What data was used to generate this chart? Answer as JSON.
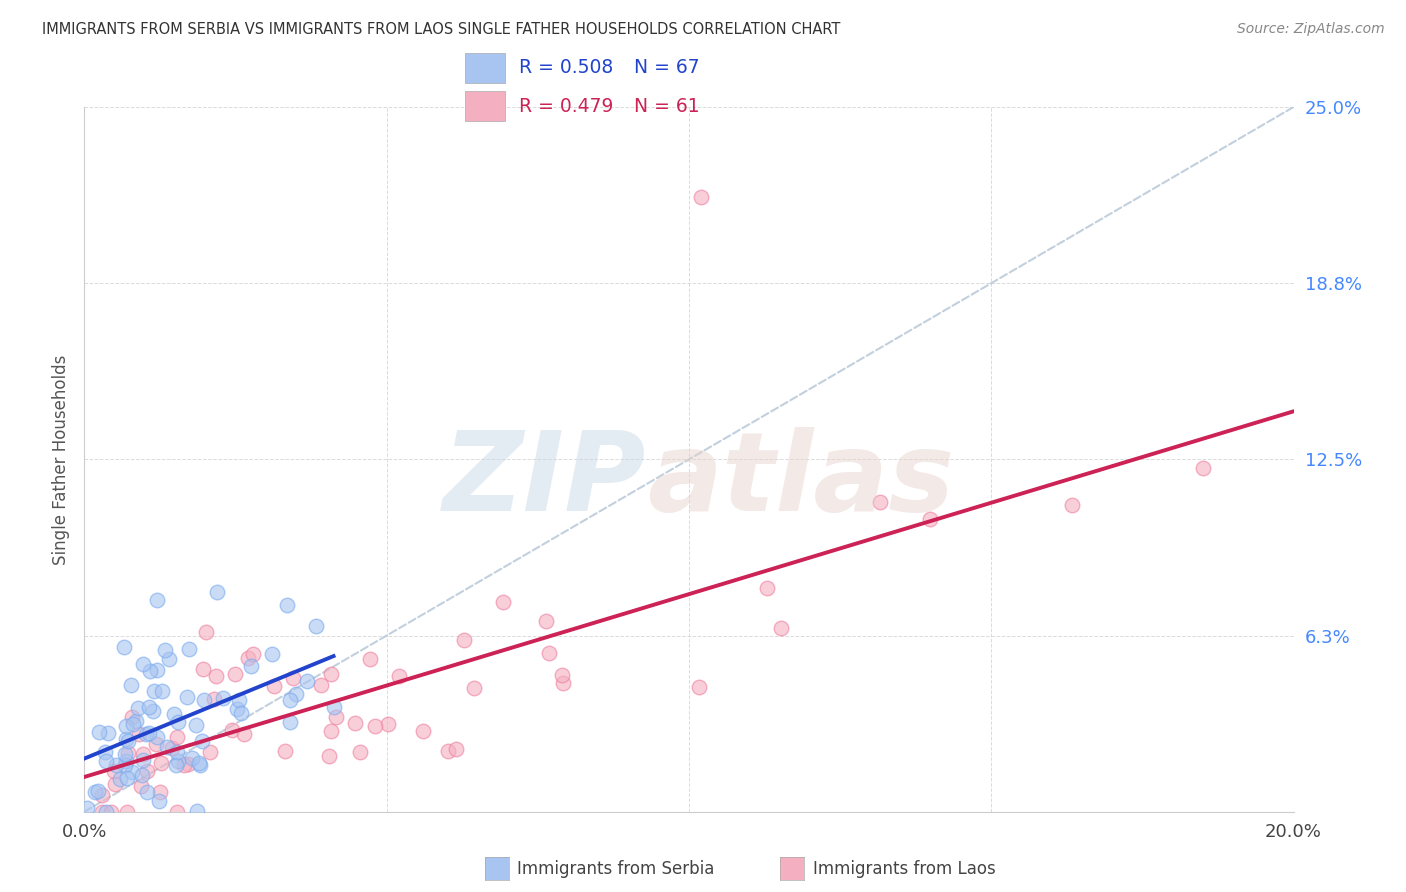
{
  "title": "IMMIGRANTS FROM SERBIA VS IMMIGRANTS FROM LAOS SINGLE FATHER HOUSEHOLDS CORRELATION CHART",
  "source": "Source: ZipAtlas.com",
  "ylabel": "Single Father Households",
  "xlim": [
    0.0,
    0.2
  ],
  "ylim": [
    0.0,
    0.25
  ],
  "serbia_color": "#a8c4f0",
  "serbia_edge": "#7aabf0",
  "laos_color": "#f4b0c0",
  "laos_edge": "#f080a0",
  "serbia_line_color": "#2244cc",
  "laos_line_color": "#cc2255",
  "diag_line_color": "#b8c8d8",
  "right_tick_color": "#4488ff",
  "grid_color": "#cccccc",
  "yticks_right": [
    0.0625,
    0.125,
    0.1875,
    0.25
  ],
  "yticklabels_right": [
    "6.3%",
    "12.5%",
    "18.8%",
    "25.0%"
  ],
  "watermark_zip_color": "#c8d8e8",
  "watermark_atlas_color": "#e8d0c8"
}
